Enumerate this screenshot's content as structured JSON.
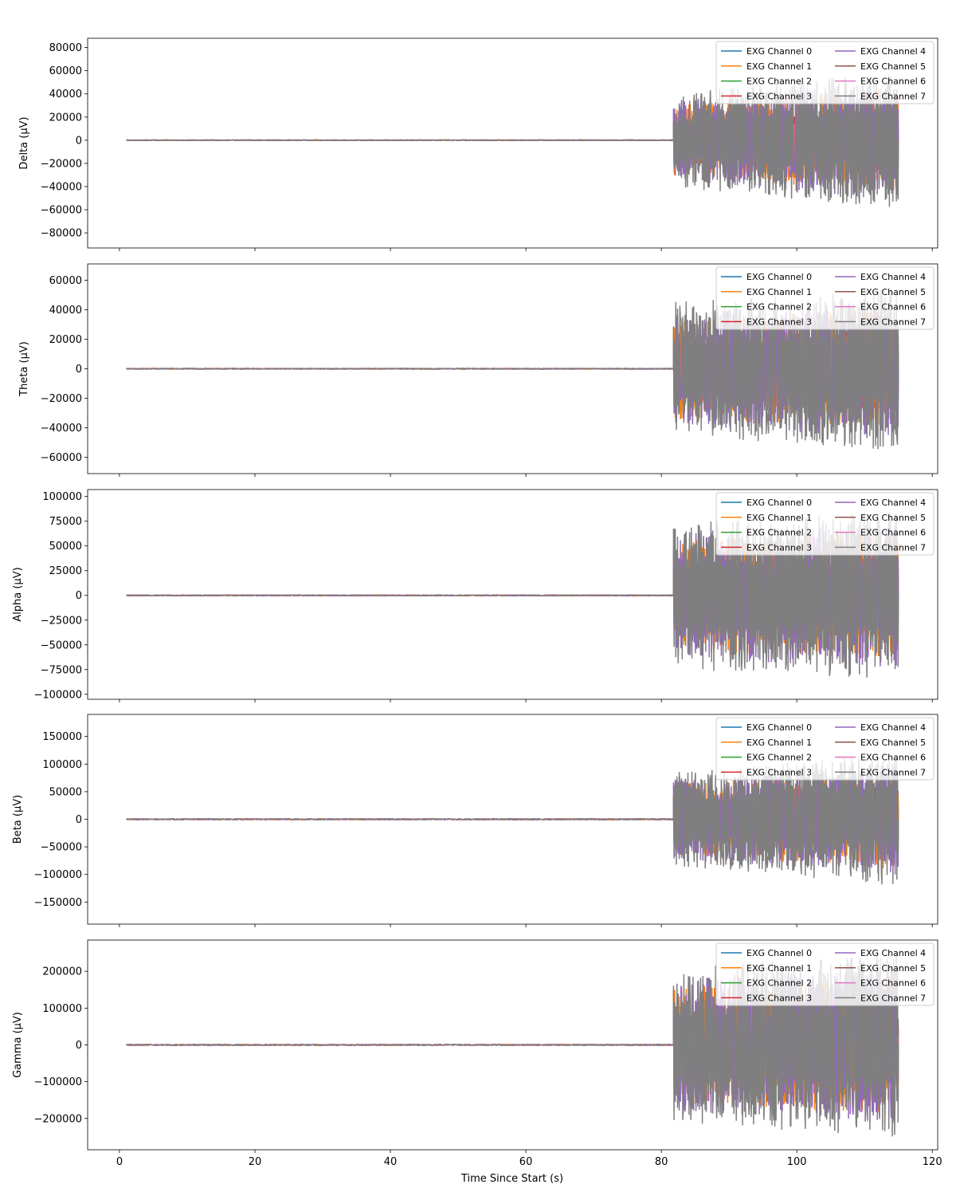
{
  "figure": {
    "xlabel": "Time Since Start (s)",
    "x_ticks": [
      0,
      20,
      40,
      60,
      80,
      100,
      120
    ],
    "xlim": [
      -4.7,
      120.8
    ],
    "series_names": [
      "EXG Channel 0",
      "EXG Channel 1",
      "EXG Channel 2",
      "EXG Channel 3",
      "EXG Channel 4",
      "EXG Channel 5",
      "EXG Channel 6",
      "EXG Channel 7"
    ],
    "series_colors": [
      "#1f77b4",
      "#ff7f0e",
      "#2ca02c",
      "#d62728",
      "#9467bd",
      "#8c564b",
      "#e377c2",
      "#7f7f7f"
    ],
    "legend_position": "top-right",
    "legend_columns": 2
  },
  "chart_data": [
    {
      "type": "line",
      "ylabel": "Delta (µV)",
      "ylim": [
        -93000,
        88000
      ],
      "y_ticks": [
        -80000,
        -60000,
        -40000,
        -20000,
        0,
        20000,
        40000,
        60000,
        80000
      ],
      "x_range": [
        1,
        115
      ],
      "quiet_until": 81.8,
      "quiet_amplitude": 300,
      "burst_amplitude": 40000,
      "burst_amplitude_late": 60000,
      "series": [
        {
          "name": "EXG Channel 0"
        },
        {
          "name": "EXG Channel 1"
        },
        {
          "name": "EXG Channel 2"
        },
        {
          "name": "EXG Channel 3"
        },
        {
          "name": "EXG Channel 4"
        },
        {
          "name": "EXG Channel 5"
        },
        {
          "name": "EXG Channel 6"
        },
        {
          "name": "EXG Channel 7"
        }
      ]
    },
    {
      "type": "line",
      "ylabel": "Theta (µV)",
      "ylim": [
        -71000,
        71000
      ],
      "y_ticks": [
        -60000,
        -40000,
        -20000,
        0,
        20000,
        40000,
        60000
      ],
      "x_range": [
        1,
        115
      ],
      "quiet_until": 81.8,
      "quiet_amplitude": 300,
      "burst_amplitude": 45000,
      "burst_amplitude_late": 55000,
      "series": [
        {
          "name": "EXG Channel 0"
        },
        {
          "name": "EXG Channel 1"
        },
        {
          "name": "EXG Channel 2"
        },
        {
          "name": "EXG Channel 3"
        },
        {
          "name": "EXG Channel 4"
        },
        {
          "name": "EXG Channel 5"
        },
        {
          "name": "EXG Channel 6"
        },
        {
          "name": "EXG Channel 7"
        }
      ]
    },
    {
      "type": "line",
      "ylabel": "Alpha (µV)",
      "ylim": [
        -105000,
        107000
      ],
      "y_ticks": [
        -100000,
        -75000,
        -50000,
        -25000,
        0,
        25000,
        50000,
        75000,
        100000
      ],
      "x_range": [
        1,
        115
      ],
      "quiet_until": 81.8,
      "quiet_amplitude": 500,
      "burst_amplitude": 75000,
      "burst_amplitude_late": 85000,
      "series": [
        {
          "name": "EXG Channel 0"
        },
        {
          "name": "EXG Channel 1"
        },
        {
          "name": "EXG Channel 2"
        },
        {
          "name": "EXG Channel 3"
        },
        {
          "name": "EXG Channel 4"
        },
        {
          "name": "EXG Channel 5"
        },
        {
          "name": "EXG Channel 6"
        },
        {
          "name": "EXG Channel 7"
        }
      ]
    },
    {
      "type": "line",
      "ylabel": "Beta (µV)",
      "ylim": [
        -190000,
        190000
      ],
      "y_ticks": [
        -150000,
        -100000,
        -50000,
        0,
        50000,
        100000,
        150000
      ],
      "x_range": [
        1,
        115
      ],
      "quiet_until": 81.8,
      "quiet_amplitude": 1000,
      "burst_amplitude": 85000,
      "burst_amplitude_late": 120000,
      "series": [
        {
          "name": "EXG Channel 0"
        },
        {
          "name": "EXG Channel 1"
        },
        {
          "name": "EXG Channel 2"
        },
        {
          "name": "EXG Channel 3"
        },
        {
          "name": "EXG Channel 4"
        },
        {
          "name": "EXG Channel 5"
        },
        {
          "name": "EXG Channel 6"
        },
        {
          "name": "EXG Channel 7"
        }
      ]
    },
    {
      "type": "line",
      "ylabel": "Gamma (µV)",
      "ylim": [
        -285000,
        285000
      ],
      "y_ticks": [
        -200000,
        -100000,
        0,
        100000,
        200000
      ],
      "x_range": [
        1,
        115
      ],
      "quiet_until": 81.8,
      "quiet_amplitude": 1500,
      "burst_amplitude": 210000,
      "burst_amplitude_late": 250000,
      "series": [
        {
          "name": "EXG Channel 0"
        },
        {
          "name": "EXG Channel 1"
        },
        {
          "name": "EXG Channel 2"
        },
        {
          "name": "EXG Channel 3"
        },
        {
          "name": "EXG Channel 4"
        },
        {
          "name": "EXG Channel 5"
        },
        {
          "name": "EXG Channel 6"
        },
        {
          "name": "EXG Channel 7"
        }
      ]
    }
  ]
}
